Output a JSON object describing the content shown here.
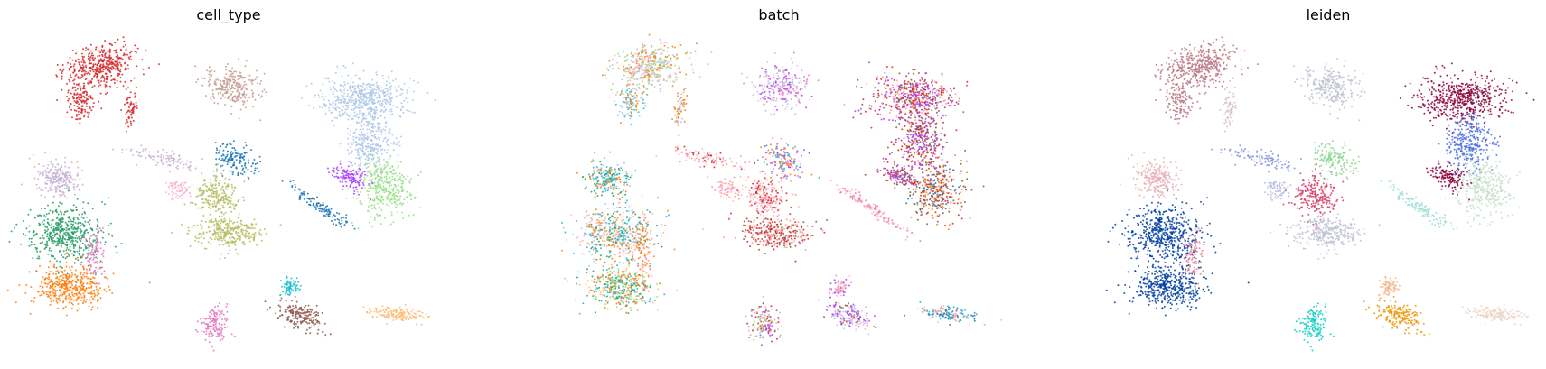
{
  "chart_data": [
    {
      "type": "scatter",
      "title": "cell_type",
      "xlabel": "",
      "ylabel": "",
      "axes": "off",
      "grid": false,
      "legend": "none",
      "palette": [
        "#1f77b4",
        "#ff7f0e",
        "#279e68",
        "#d62728",
        "#aa40fc",
        "#8c564b",
        "#e377c2",
        "#b5bd61",
        "#17becf",
        "#aec7e8",
        "#ffbb78",
        "#98df8a",
        "#ff9896",
        "#c5b0d5",
        "#c49c94",
        "#f7b6d2",
        "#dbdb8d"
      ]
    },
    {
      "type": "scatter",
      "title": "batch",
      "xlabel": "",
      "ylabel": "",
      "axes": "off",
      "grid": false,
      "legend": "none",
      "palette": [
        "#1f77b4",
        "#ff7f0e",
        "#279e68",
        "#d62728",
        "#aa40fc",
        "#8c564b",
        "#e377c2",
        "#b5bd61",
        "#17becf",
        "#aec7e8",
        "#ffbb78",
        "#98df8a",
        "#ff9896",
        "#c5b0d5",
        "#f7b6d2"
      ]
    },
    {
      "type": "scatter",
      "title": "leiden",
      "xlabel": "",
      "ylabel": "",
      "axes": "off",
      "grid": false,
      "legend": "none",
      "palette": [
        "#023fa5",
        "#7d87b9",
        "#bec1d4",
        "#d6bcc0",
        "#bb7784",
        "#8e063b",
        "#4a6fe3",
        "#8595e1",
        "#b5bbe3",
        "#e6afb9",
        "#e07b91",
        "#d33f6a",
        "#11c638",
        "#8dd593",
        "#c6dec7",
        "#ead3c6",
        "#f0b98d",
        "#ef9708",
        "#0fcfc0",
        "#9cded6",
        "#d5eae7",
        "#f3e1eb",
        "#f6c4e1",
        "#f79cd4"
      ]
    }
  ]
}
